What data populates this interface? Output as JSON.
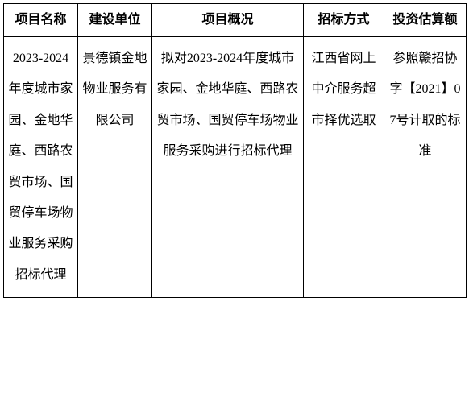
{
  "table": {
    "columns": [
      {
        "label": "项目名称",
        "width": 92
      },
      {
        "label": "建设单位",
        "width": 92
      },
      {
        "label": "项目概况",
        "width": 188
      },
      {
        "label": "招标方式",
        "width": 100
      },
      {
        "label": "投资估算额",
        "width": 102
      }
    ],
    "rows": [
      {
        "c0": "2023-2024年度城市家园、金地华庭、西路农贸市场、国贸停车场物业服务采购招标代理",
        "c1": "景德镇金地物业服务有限公司",
        "c2": "拟对2023-2024年度城市家园、金地华庭、西路农贸市场、国贸停车场物业服务采购进行招标代理",
        "c3": "江西省网上中介服务超市择优选取",
        "c4": "参照赣招协字【2021】07号计取的标准"
      }
    ],
    "styling": {
      "border_color": "#000000",
      "background_color": "#ffffff",
      "text_color": "#000000",
      "font_family": "SimSun",
      "header_font_weight": "bold",
      "cell_font_size": 16,
      "line_height": 2.4,
      "text_align": "center"
    }
  }
}
